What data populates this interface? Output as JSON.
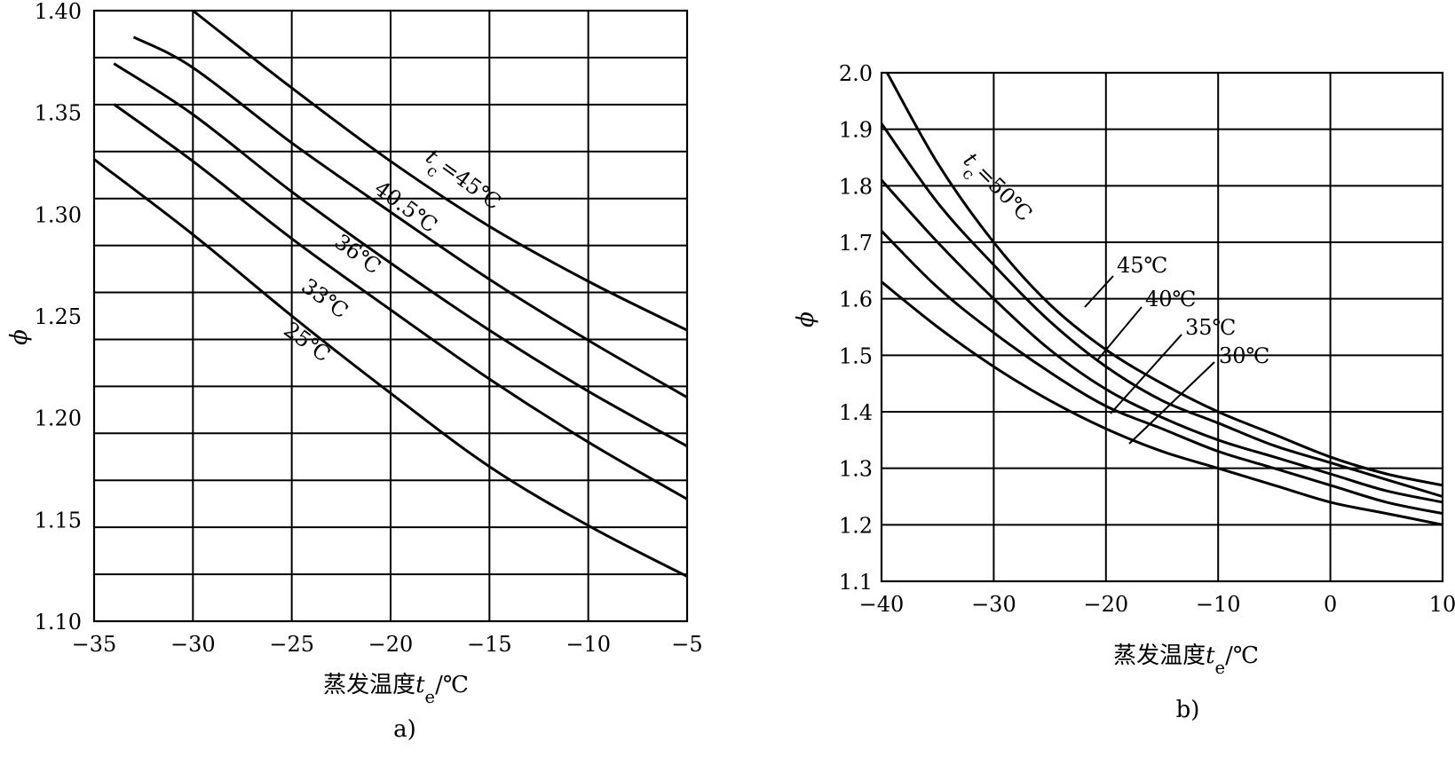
{
  "chart_data": [
    {
      "panel_label": "a)",
      "type": "line",
      "xlabel": "蒸发温度t_e/℃",
      "ylabel": "ϕ",
      "xlim": [
        -35,
        -5
      ],
      "ylim": [
        1.1,
        1.4
      ],
      "xticks": [
        "−35",
        "−30",
        "−25",
        "−20",
        "−15",
        "−10",
        "−5"
      ],
      "yticks": [
        "1.10",
        "1.15",
        "1.20",
        "1.25",
        "1.30",
        "1.35",
        "1.40"
      ],
      "grid": true,
      "series": [
        {
          "name": "t_c=45℃",
          "x": [
            -30.0,
            -25,
            -20,
            -15,
            -10,
            -5
          ],
          "y": [
            1.4,
            1.362,
            1.326,
            1.294,
            1.267,
            1.243
          ]
        },
        {
          "name": "40.5℃",
          "x": [
            -33,
            -30,
            -25,
            -20,
            -15,
            -10,
            -5
          ],
          "y": [
            1.387,
            1.372,
            1.335,
            1.301,
            1.268,
            1.238,
            1.21
          ]
        },
        {
          "name": "36℃",
          "x": [
            -34,
            -30,
            -25,
            -20,
            -15,
            -10,
            -5
          ],
          "y": [
            1.374,
            1.349,
            1.311,
            1.276,
            1.243,
            1.213,
            1.186
          ]
        },
        {
          "name": "33℃",
          "x": [
            -34,
            -30,
            -25,
            -20,
            -15,
            -10,
            -5
          ],
          "y": [
            1.354,
            1.326,
            1.288,
            1.253,
            1.219,
            1.188,
            1.16
          ]
        },
        {
          "name": "25℃",
          "x": [
            -35,
            -30,
            -25,
            -20,
            -15,
            -10,
            -5
          ],
          "y": [
            1.327,
            1.29,
            1.25,
            1.212,
            1.176,
            1.147,
            1.122
          ]
        }
      ],
      "curve_labels": [
        {
          "text": "t_c=45℃",
          "series": 0
        },
        {
          "text": "40.5℃",
          "series": 1
        },
        {
          "text": "36℃",
          "series": 2
        },
        {
          "text": "33℃",
          "series": 3
        },
        {
          "text": "25℃",
          "series": 4
        }
      ]
    },
    {
      "panel_label": "b)",
      "type": "line",
      "xlabel": "蒸发温度t_e/℃",
      "ylabel": "ϕ",
      "xlim": [
        -40,
        10
      ],
      "ylim": [
        1.1,
        2.0
      ],
      "xticks": [
        "−40",
        "−30",
        "−20",
        "−10",
        "0",
        "10"
      ],
      "yticks": [
        "1.1",
        "1.2",
        "1.3",
        "1.4",
        "1.5",
        "1.6",
        "1.7",
        "1.8",
        "1.9",
        "2.0"
      ],
      "grid": true,
      "series": [
        {
          "name": "t_c=50℃",
          "x": [
            -39.5,
            -35,
            -30,
            -25,
            -20,
            -15,
            -10,
            -5,
            0,
            5,
            10
          ],
          "y": [
            2.0,
            1.84,
            1.7,
            1.59,
            1.51,
            1.45,
            1.4,
            1.36,
            1.32,
            1.29,
            1.27
          ]
        },
        {
          "name": "45℃",
          "x": [
            -40,
            -35,
            -30,
            -25,
            -20,
            -15,
            -10,
            -5,
            0,
            5,
            10
          ],
          "y": [
            1.91,
            1.77,
            1.66,
            1.56,
            1.48,
            1.42,
            1.38,
            1.34,
            1.31,
            1.28,
            1.25
          ]
        },
        {
          "name": "40℃",
          "x": [
            -40,
            -35,
            -30,
            -25,
            -20,
            -15,
            -10,
            -5,
            0,
            5,
            10
          ],
          "y": [
            1.81,
            1.7,
            1.6,
            1.51,
            1.44,
            1.39,
            1.35,
            1.32,
            1.29,
            1.26,
            1.24
          ]
        },
        {
          "name": "35℃",
          "x": [
            -40,
            -35,
            -30,
            -25,
            -20,
            -15,
            -10,
            -5,
            0,
            5,
            10
          ],
          "y": [
            1.72,
            1.62,
            1.54,
            1.47,
            1.41,
            1.37,
            1.33,
            1.3,
            1.27,
            1.24,
            1.22
          ]
        },
        {
          "name": "30℃",
          "x": [
            -40,
            -35,
            -30,
            -25,
            -20,
            -15,
            -10,
            -5,
            0,
            5,
            10
          ],
          "y": [
            1.63,
            1.55,
            1.48,
            1.42,
            1.37,
            1.33,
            1.3,
            1.27,
            1.24,
            1.22,
            1.2
          ]
        }
      ],
      "curve_labels": [
        {
          "text": "t_c=50℃",
          "series": 0
        },
        {
          "text": "45℃",
          "series": 1
        },
        {
          "text": "40℃",
          "series": 2
        },
        {
          "text": "35℃",
          "series": 3
        },
        {
          "text": "30℃",
          "series": 4
        }
      ]
    }
  ]
}
